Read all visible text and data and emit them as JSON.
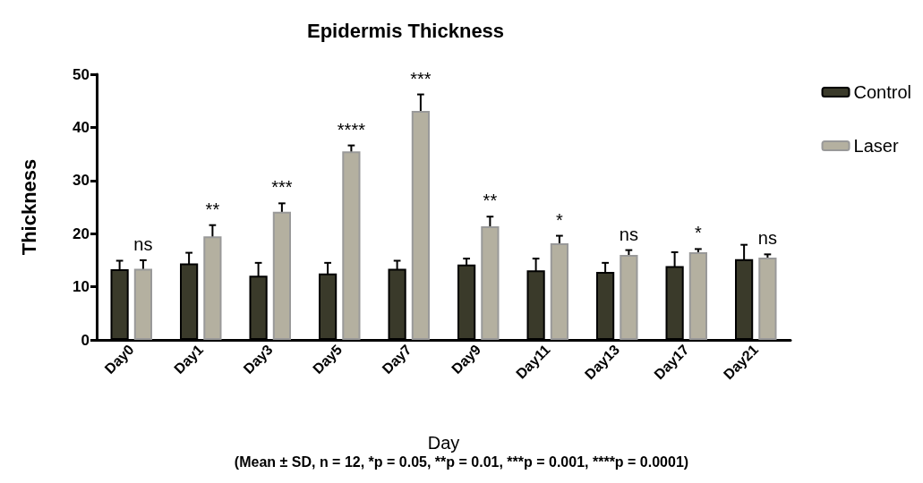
{
  "chart_data": {
    "type": "bar",
    "title": "Epidermis Thickness",
    "xlabel": "Day",
    "ylabel": "Thickness",
    "categories": [
      "Day0",
      "Day1",
      "Day3",
      "Day5",
      "Day7",
      "Day9",
      "Day11",
      "Day13",
      "Day17",
      "Day21"
    ],
    "series": [
      {
        "name": "Control",
        "color": "#3a3a2a",
        "values": [
          13.3,
          14.4,
          12.1,
          12.5,
          13.4,
          14.2,
          13.1,
          12.8,
          13.9,
          15.2
        ],
        "errors": [
          1.6,
          2,
          2.4,
          2,
          1.5,
          1.1,
          2.2,
          1.7,
          2.6,
          2.7
        ]
      },
      {
        "name": "Laser",
        "color": "#b4b0a0",
        "values": [
          13.4,
          19.5,
          24.1,
          35.5,
          43.1,
          21.4,
          18.2,
          16,
          16.5,
          15.5
        ],
        "errors": [
          1.6,
          2.1,
          1.6,
          1.1,
          3.1,
          1.8,
          1.4,
          0.9,
          0.6,
          0.6
        ]
      }
    ],
    "ylim": [
      0,
      50
    ],
    "yticks": [
      0,
      10,
      20,
      30,
      40,
      50
    ],
    "grid": false,
    "legend": "right",
    "annotations": [
      "ns",
      "**",
      "***",
      "****",
      "***",
      "**",
      "*",
      "ns",
      "*",
      "ns",
      "(Mean ± SD, n = 12, *p = 0.05, **p = 0.01, ***p = 0.001, ****p = 0.0001)"
    ]
  }
}
